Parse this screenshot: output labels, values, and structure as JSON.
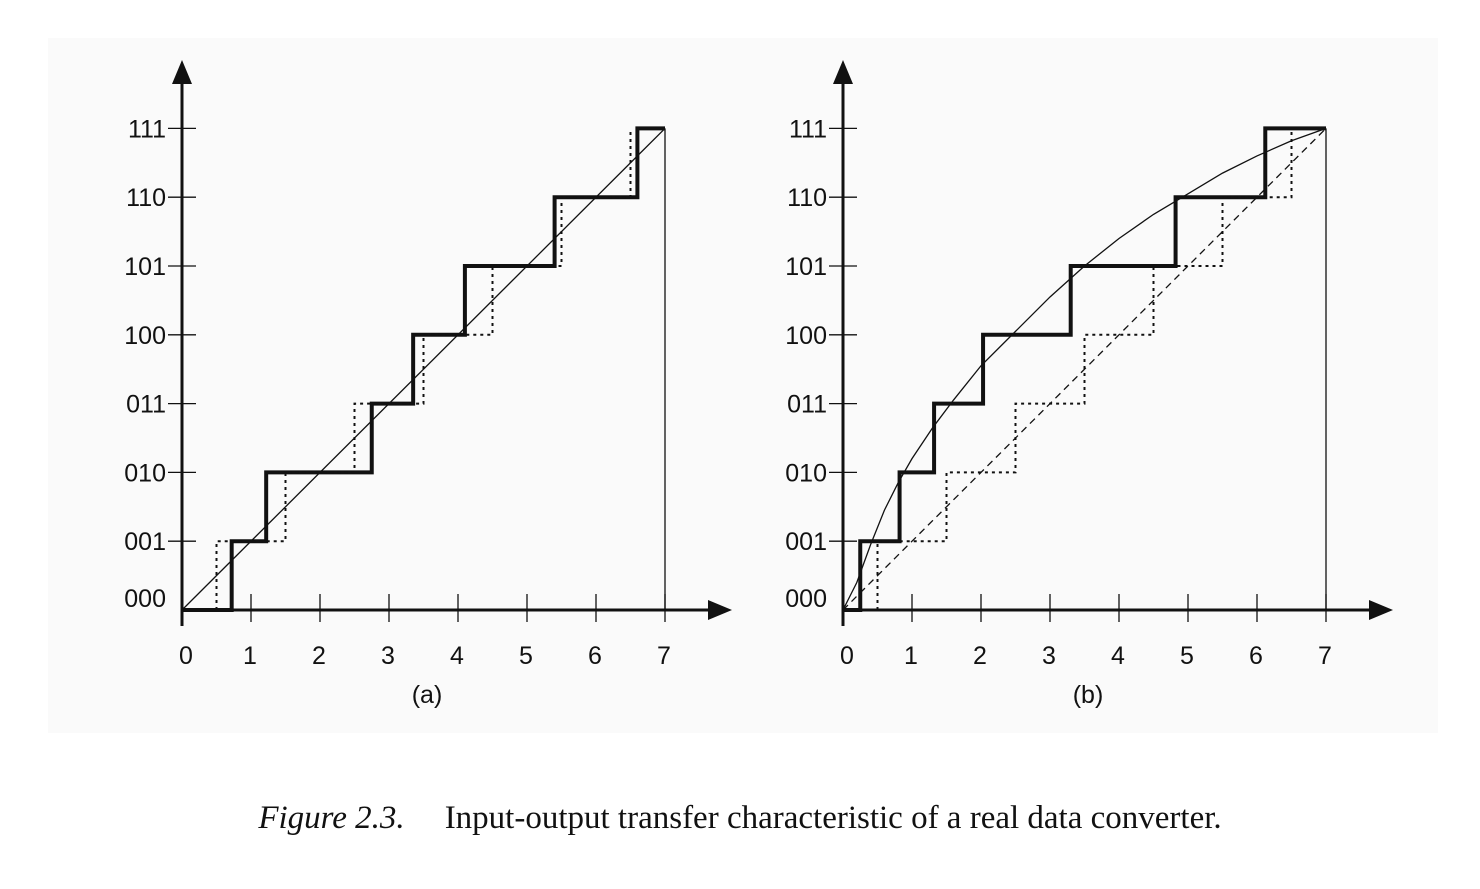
{
  "caption": {
    "figure_number": "Figure 2.3.",
    "text": "Input-output transfer characteristic of a real data converter."
  },
  "chart_data": [
    {
      "type": "line",
      "panel_label": "(a)",
      "x_ticks": [
        "0",
        "1",
        "2",
        "3",
        "4",
        "5",
        "6",
        "7"
      ],
      "y_ticks": [
        "000",
        "001",
        "010",
        "011",
        "100",
        "101",
        "110",
        "111"
      ],
      "xlim": [
        0,
        7
      ],
      "ylim": [
        0,
        7
      ],
      "grid": false,
      "series": [
        {
          "style": "solid-thick",
          "points": [
            [
              0,
              0
            ],
            [
              0.72,
              0
            ],
            [
              0.72,
              1
            ],
            [
              1.22,
              1
            ],
            [
              1.22,
              2
            ],
            [
              2.75,
              2
            ],
            [
              2.75,
              3
            ],
            [
              3.35,
              3
            ],
            [
              3.35,
              4
            ],
            [
              4.1,
              4
            ],
            [
              4.1,
              5
            ],
            [
              5.4,
              5
            ],
            [
              5.4,
              6
            ],
            [
              6.6,
              6
            ],
            [
              6.6,
              7
            ],
            [
              7,
              7
            ]
          ]
        },
        {
          "style": "dotted",
          "points": [
            [
              0.5,
              0
            ],
            [
              0.5,
              1
            ],
            [
              1.5,
              1
            ],
            [
              1.5,
              2
            ],
            [
              2.5,
              2
            ],
            [
              2.5,
              3
            ],
            [
              3.5,
              3
            ],
            [
              3.5,
              4
            ],
            [
              4.5,
              4
            ],
            [
              4.5,
              5
            ],
            [
              5.5,
              5
            ],
            [
              5.5,
              6
            ],
            [
              6.5,
              6
            ],
            [
              6.5,
              7
            ]
          ]
        },
        {
          "style": "solid-thin",
          "points": [
            [
              0,
              0
            ],
            [
              7,
              7
            ]
          ]
        },
        {
          "style": "solid-thin",
          "points": [
            [
              7,
              0
            ],
            [
              7,
              7
            ]
          ]
        }
      ]
    },
    {
      "type": "line",
      "panel_label": "(b)",
      "x_ticks": [
        "0",
        "1",
        "2",
        "3",
        "4",
        "5",
        "6",
        "7"
      ],
      "y_ticks": [
        "000",
        "001",
        "010",
        "011",
        "100",
        "101",
        "110",
        "111"
      ],
      "xlim": [
        0,
        7
      ],
      "ylim": [
        0,
        7
      ],
      "grid": false,
      "series": [
        {
          "style": "solid-thick",
          "points": [
            [
              0,
              0
            ],
            [
              0.25,
              0
            ],
            [
              0.25,
              1
            ],
            [
              0.82,
              1
            ],
            [
              0.82,
              2
            ],
            [
              1.32,
              2
            ],
            [
              1.32,
              3
            ],
            [
              2.03,
              3
            ],
            [
              2.03,
              4
            ],
            [
              3.3,
              4
            ],
            [
              3.3,
              5
            ],
            [
              4.82,
              5
            ],
            [
              4.82,
              6
            ],
            [
              6.12,
              6
            ],
            [
              6.12,
              7
            ],
            [
              7,
              7
            ]
          ]
        },
        {
          "style": "dotted",
          "points": [
            [
              0.5,
              0
            ],
            [
              0.5,
              1
            ],
            [
              1.5,
              1
            ],
            [
              1.5,
              2
            ],
            [
              2.5,
              2
            ],
            [
              2.5,
              3
            ],
            [
              3.5,
              3
            ],
            [
              3.5,
              4
            ],
            [
              4.5,
              4
            ],
            [
              4.5,
              5
            ],
            [
              5.5,
              5
            ],
            [
              5.5,
              6
            ],
            [
              6.5,
              6
            ],
            [
              6.5,
              7
            ]
          ]
        },
        {
          "style": "dashed",
          "points": [
            [
              0,
              0
            ],
            [
              7,
              7
            ]
          ]
        },
        {
          "style": "solid-thin",
          "points": [
            [
              0,
              0
            ],
            [
              0.2,
              0.4
            ],
            [
              0.4,
              0.95
            ],
            [
              0.6,
              1.45
            ],
            [
              0.8,
              1.85
            ],
            [
              1.0,
              2.2
            ],
            [
              1.3,
              2.65
            ],
            [
              1.6,
              3.05
            ],
            [
              2.0,
              3.55
            ],
            [
              2.5,
              4.05
            ],
            [
              3.0,
              4.55
            ],
            [
              3.5,
              5.0
            ],
            [
              4.0,
              5.4
            ],
            [
              4.5,
              5.75
            ],
            [
              5.0,
              6.05
            ],
            [
              5.5,
              6.35
            ],
            [
              6.0,
              6.6
            ],
            [
              6.5,
              6.82
            ],
            [
              7,
              7
            ]
          ]
        },
        {
          "style": "solid-thin",
          "points": [
            [
              7,
              0
            ],
            [
              7,
              7
            ]
          ]
        }
      ]
    }
  ]
}
